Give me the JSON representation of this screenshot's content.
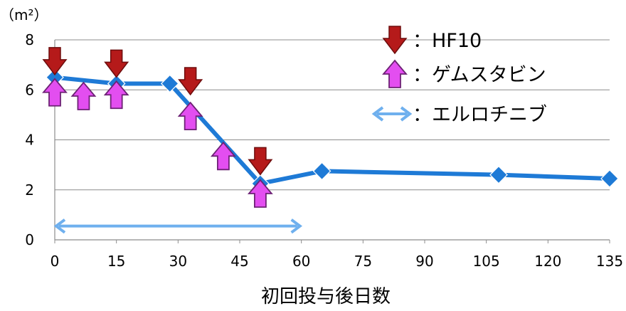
{
  "chart_data": {
    "type": "line",
    "title": "",
    "xlabel": "初回投与後日数",
    "ylabel": "（m²）",
    "xlim": [
      0,
      135
    ],
    "ylim": [
      0,
      8
    ],
    "x_ticks": [
      0,
      15,
      30,
      45,
      60,
      75,
      90,
      105,
      120,
      135
    ],
    "y_ticks": [
      0,
      2,
      4,
      6,
      8
    ],
    "grid": "horizontal",
    "series": [
      {
        "name": "",
        "color": "#1e7ad6",
        "marker": "diamond",
        "x": [
          0,
          15,
          28,
          50,
          65,
          108,
          135
        ],
        "y": [
          6.5,
          6.25,
          6.25,
          2.25,
          2.75,
          2.6,
          2.45
        ]
      }
    ],
    "annotations": {
      "hf10": {
        "label": "：HF10",
        "icon": "down-arrow-icon",
        "color": "#b51a1a",
        "points": [
          {
            "x": 0,
            "y": 7.15
          },
          {
            "x": 15,
            "y": 7.05
          },
          {
            "x": 33,
            "y": 6.35
          },
          {
            "x": 50,
            "y": 3.15
          }
        ]
      },
      "gemcitabine": {
        "label": "：ゲムスタビン",
        "icon": "up-arrow-icon",
        "color": "#e34ef0",
        "points": [
          {
            "x": 0,
            "y": 5.9
          },
          {
            "x": 7,
            "y": 5.75
          },
          {
            "x": 15,
            "y": 5.8
          },
          {
            "x": 33,
            "y": 4.95
          },
          {
            "x": 41,
            "y": 3.35
          },
          {
            "x": 50,
            "y": 1.85
          }
        ]
      },
      "erlotinib": {
        "label": "：エルロチニブ",
        "icon": "double-arrow-icon",
        "color": "#6fb0ee",
        "range": {
          "x_start": 0,
          "x_end": 60,
          "y": 0.55
        }
      }
    }
  }
}
